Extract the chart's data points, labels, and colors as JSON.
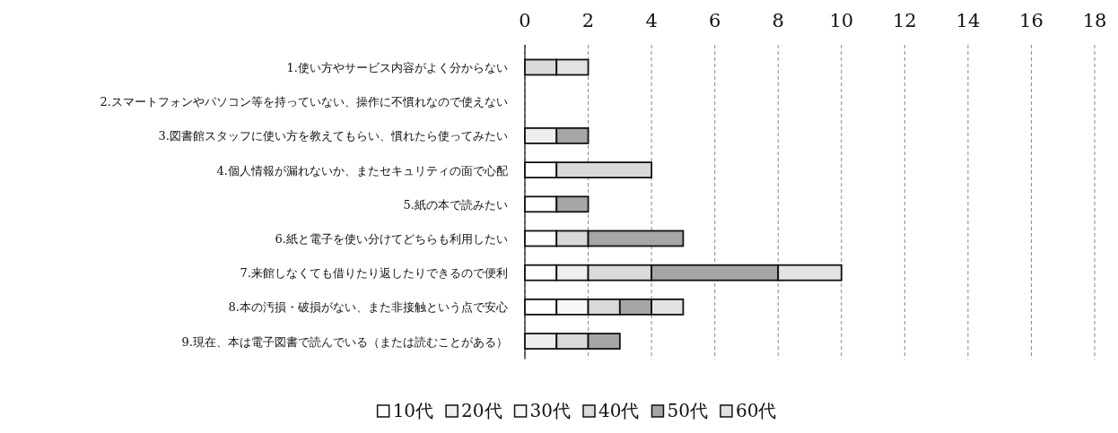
{
  "chart_data": {
    "type": "bar",
    "orientation": "horizontal",
    "stacked": true,
    "categories": [
      "1.使い方やサービス内容がよく分からない",
      "2.スマートフォンやパソコン等を持っていない、操作に不慣れなので使えない",
      "3.図書館スタッフに使い方を教えてもらい、慣れたら使ってみたい",
      "4.個人情報が漏れないか、またセキュリティの面で心配",
      "5.紙の本で読みたい",
      "6.紙と電子を使い分けてどちらも利用したい",
      "7.来館しなくても借りたり返したりできるので便利",
      "8.本の汚損・破損がない、また非接触という点で安心",
      "9.現在、本は電子図書で読んでいる（または読むことがある）"
    ],
    "series": [
      {
        "name": "10代",
        "color": "#ffffff",
        "values": [
          0,
          0,
          0,
          1,
          1,
          1,
          1,
          1,
          0
        ]
      },
      {
        "name": "20代",
        "color": "#eeeeee",
        "values": [
          0,
          0,
          1,
          0,
          0,
          0,
          1,
          0,
          1
        ]
      },
      {
        "name": "30代",
        "color": "#f8f8f8",
        "values": [
          0,
          0,
          0,
          0,
          0,
          0,
          0,
          1,
          0
        ]
      },
      {
        "name": "40代",
        "color": "#d9d9d9",
        "values": [
          1,
          0,
          0,
          3,
          0,
          1,
          2,
          1,
          1
        ]
      },
      {
        "name": "50代",
        "color": "#a6a6a6",
        "values": [
          0,
          0,
          1,
          0,
          1,
          3,
          4,
          1,
          1
        ]
      },
      {
        "name": "60代",
        "color": "#e3e3e3",
        "values": [
          1,
          0,
          0,
          0,
          0,
          0,
          2,
          1,
          0
        ]
      }
    ],
    "xlim": [
      0,
      18
    ],
    "xticks": [
      0,
      2,
      4,
      6,
      8,
      10,
      12,
      14,
      16,
      18
    ],
    "grid": "x",
    "legend": "bottom"
  }
}
